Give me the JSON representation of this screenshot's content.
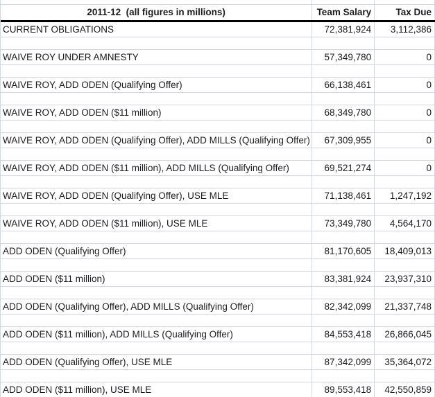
{
  "table": {
    "header": {
      "title": "2011-12  (all figures in millions)",
      "team_salary": "Team Salary",
      "tax_due": "Tax Due"
    },
    "rows": [
      {
        "label": "CURRENT OBLIGATIONS",
        "team_salary": "72,381,924",
        "tax_due": "3,112,386"
      },
      {
        "label": "WAIVE ROY UNDER AMNESTY",
        "team_salary": "57,349,780",
        "tax_due": "0"
      },
      {
        "label": "WAIVE ROY, ADD ODEN (Qualifying Offer)",
        "team_salary": "66,138,461",
        "tax_due": "0"
      },
      {
        "label": "WAIVE ROY, ADD ODEN ($11 million)",
        "team_salary": "68,349,780",
        "tax_due": "0"
      },
      {
        "label": "WAIVE ROY, ADD ODEN (Qualifying Offer), ADD MILLS (Qualifying Offer)",
        "team_salary": "67,309,955",
        "tax_due": "0"
      },
      {
        "label": "WAIVE ROY, ADD ODEN ($11 million), ADD MILLS (Qualifying Offer)",
        "team_salary": "69,521,274",
        "tax_due": "0"
      },
      {
        "label": "WAIVE ROY, ADD ODEN (Qualifying Offer), USE MLE",
        "team_salary": "71,138,461",
        "tax_due": "1,247,192"
      },
      {
        "label": "WAIVE ROY, ADD ODEN ($11 million), USE MLE",
        "team_salary": "73,349,780",
        "tax_due": "4,564,170"
      },
      {
        "label": "ADD ODEN (Qualifying Offer)",
        "team_salary": "81,170,605",
        "tax_due": "18,409,013"
      },
      {
        "label": "ADD ODEN ($11 million)",
        "team_salary": "83,381,924",
        "tax_due": "23,937,310"
      },
      {
        "label": "ADD ODEN (Qualifying Offer), ADD MILLS (Qualifying Offer)",
        "team_salary": "82,342,099",
        "tax_due": "21,337,748"
      },
      {
        "label": "ADD ODEN ($11 million), ADD MILLS (Qualifying Offer)",
        "team_salary": "84,553,418",
        "tax_due": "26,866,045"
      },
      {
        "label": "ADD ODEN (Qualifying Offer), USE MLE",
        "team_salary": "87,342,099",
        "tax_due": "35,364,072"
      },
      {
        "label": "ADD ODEN ($11 million), USE MLE",
        "team_salary": "89,553,418",
        "tax_due": "42,550,859"
      }
    ],
    "colors": {
      "gridline": "#d0d7e5",
      "header_underline": "#000000",
      "text": "#1b1b1b",
      "background": "#ffffff"
    }
  }
}
